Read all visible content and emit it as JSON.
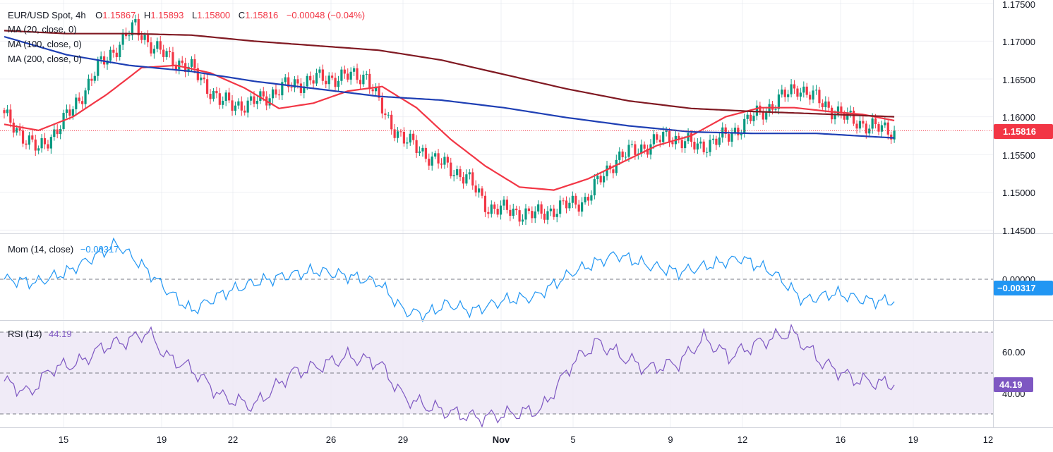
{
  "colors": {
    "up": "#089981",
    "down": "#f23645",
    "ma20": "#f23645",
    "ma100": "#1e3fb4",
    "ma200": "#801922",
    "momentum": "#2196f3",
    "rsi": "#7e57c2",
    "rsi_band": "#ede7f6",
    "grid": "#e0e3eb",
    "text": "#131722"
  },
  "header": {
    "symbol": "EUR/USD Spot, 4h",
    "open_label": "O",
    "open": "1.15867",
    "high_label": "H",
    "high": "1.15893",
    "low_label": "L",
    "low": "1.15800",
    "close_label": "C",
    "close": "1.15816",
    "change": "−0.00048 (−0.04%)"
  },
  "legend": {
    "ma20": "MA (20, close, 0)",
    "ma100": "MA (100, close, 0)",
    "ma200": "MA (200, close, 0)"
  },
  "price_axis": {
    "ticks": [
      "1.17500",
      "1.17000",
      "1.16500",
      "1.16000",
      "1.15500",
      "1.15000",
      "1.14500"
    ],
    "current": "1.15816"
  },
  "momentum": {
    "label": "Mom (14, close)",
    "value": "−0.00317",
    "zero_tick": "0.00000",
    "badge": "−0.00317"
  },
  "rsi": {
    "label": "RSI (14)",
    "value": "44.19",
    "ticks": [
      "60.00",
      "40.00"
    ],
    "badge": "44.19"
  },
  "time_axis": {
    "labels": [
      "15",
      "19",
      "22",
      "26",
      "29",
      "Nov",
      "5",
      "9",
      "12",
      "16",
      "19",
      "12"
    ]
  },
  "chart_data": {
    "type": "candlestick",
    "title": "EUR/USD Spot, 4h",
    "ylim": [
      1.145,
      1.175
    ],
    "last_close": 1.15816,
    "ohlc_anchors": {
      "x_index": [
        0,
        11,
        22,
        30,
        42,
        48,
        61,
        69,
        78,
        90,
        100,
        116,
        122,
        128,
        139,
        148,
        155,
        170,
        186,
        196,
        213,
        222,
        232,
        238,
        244,
        254,
        263,
        270,
        279,
        285
      ],
      "close": [
        1.16,
        1.1555,
        1.161,
        1.1665,
        1.172,
        1.169,
        1.166,
        1.162,
        1.1615,
        1.164,
        1.165,
        1.1655,
        1.16,
        1.157,
        1.154,
        1.152,
        1.148,
        1.147,
        1.149,
        1.1545,
        1.1575,
        1.156,
        1.1575,
        1.1595,
        1.161,
        1.164,
        1.1615,
        1.1598,
        1.1585,
        1.15816
      ]
    },
    "series": [
      {
        "name": "MA (20, close, 0)",
        "x_index": [
          0,
          11,
          22,
          33,
          44,
          55,
          66,
          77,
          88,
          99,
          110,
          121,
          132,
          143,
          154,
          165,
          176,
          187,
          198,
          209,
          220,
          231,
          242,
          253,
          264,
          275,
          285
        ],
        "values": [
          1.159,
          1.1582,
          1.16,
          1.163,
          1.1665,
          1.1668,
          1.1658,
          1.1638,
          1.1611,
          1.1618,
          1.1634,
          1.164,
          1.1612,
          1.157,
          1.1535,
          1.1507,
          1.1503,
          1.1518,
          1.154,
          1.1562,
          1.1575,
          1.16,
          1.1612,
          1.1612,
          1.1607,
          1.1603,
          1.1595
        ]
      },
      {
        "name": "MA (100, close, 0)",
        "x_index": [
          0,
          20,
          40,
          60,
          80,
          100,
          120,
          140,
          160,
          180,
          200,
          220,
          240,
          260,
          285
        ],
        "values": [
          1.1706,
          1.1682,
          1.1668,
          1.166,
          1.1647,
          1.1637,
          1.1627,
          1.1622,
          1.1612,
          1.1599,
          1.1588,
          1.158,
          1.1578,
          1.1578,
          1.1572
        ]
      },
      {
        "name": "MA (200, close, 0)",
        "x_index": [
          0,
          20,
          40,
          60,
          80,
          100,
          120,
          140,
          160,
          180,
          200,
          220,
          240,
          260,
          285
        ],
        "values": [
          1.1714,
          1.171,
          1.171,
          1.1708,
          1.17,
          1.1694,
          1.1688,
          1.1675,
          1.1656,
          1.1637,
          1.1621,
          1.1611,
          1.1607,
          1.1604,
          1.16
        ]
      }
    ],
    "momentum": {
      "name": "Mom (14, close)",
      "last": -0.00317,
      "x_index": [
        0,
        10,
        20,
        30,
        36,
        44,
        52,
        60,
        70,
        80,
        90,
        100,
        110,
        120,
        128,
        135,
        142,
        150,
        160,
        170,
        182,
        196,
        206,
        216,
        226,
        236,
        246,
        256,
        266,
        276,
        285
      ],
      "values": [
        0.0,
        -0.0005,
        0.001,
        0.0035,
        0.005,
        0.002,
        -0.0015,
        -0.0045,
        -0.002,
        -0.0005,
        0.0005,
        0.0012,
        0.0005,
        -0.0005,
        -0.0045,
        -0.005,
        -0.0035,
        -0.0045,
        -0.003,
        -0.0025,
        0.001,
        0.0035,
        0.002,
        0.001,
        0.002,
        0.003,
        0.001,
        -0.003,
        -0.002,
        -0.003,
        -0.00317
      ]
    },
    "rsi": {
      "name": "RSI (14)",
      "last": 44.19,
      "overbought": 70,
      "middle": 50,
      "oversold": 30,
      "ylim": [
        20,
        75
      ],
      "x_index": [
        0,
        8,
        15,
        24,
        32,
        40,
        46,
        52,
        60,
        70,
        80,
        92,
        100,
        110,
        120,
        128,
        135,
        142,
        152,
        162,
        172,
        182,
        190,
        198,
        206,
        216,
        224,
        232,
        242,
        252,
        262,
        272,
        285
      ],
      "values": [
        46,
        40,
        52,
        55,
        63,
        66,
        70,
        58,
        52,
        38,
        34,
        50,
        53,
        58,
        55,
        38,
        34,
        31,
        28,
        30,
        32,
        55,
        65,
        58,
        52,
        55,
        67,
        58,
        65,
        70,
        55,
        47,
        44.19
      ]
    },
    "xlabels": [
      "15",
      "19",
      "22",
      "26",
      "29",
      "Nov",
      "5",
      "9",
      "12",
      "16",
      "19",
      "12"
    ]
  }
}
